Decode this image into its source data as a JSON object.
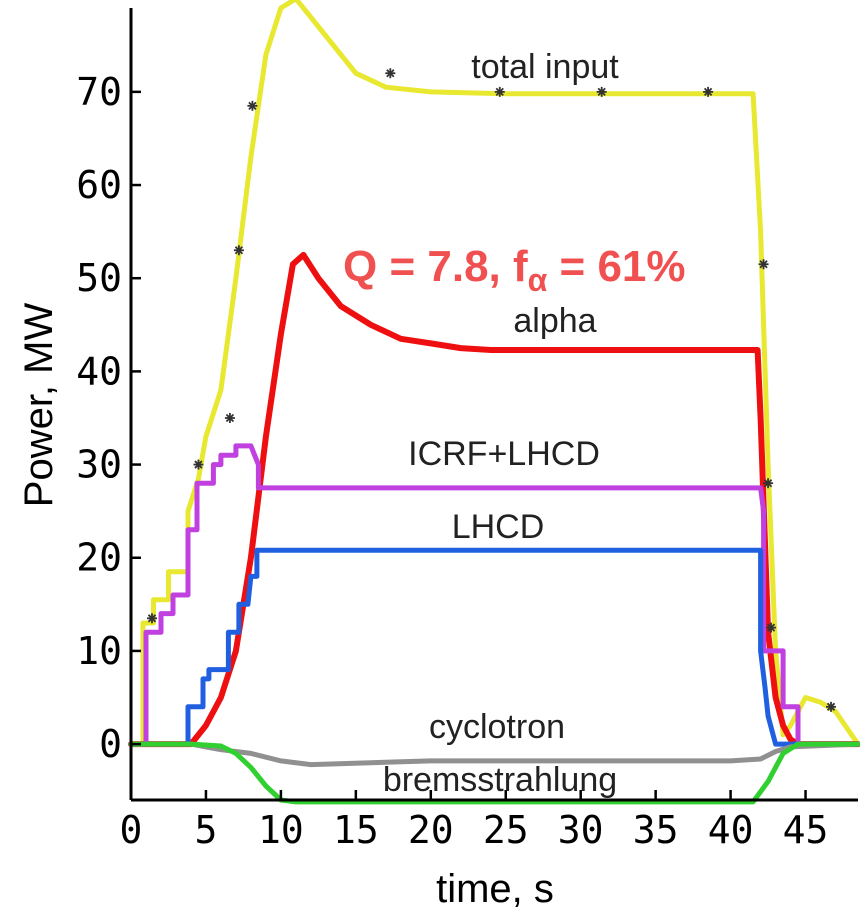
{
  "chart_data": {
    "type": "line",
    "title": "",
    "xlabel": "time, s",
    "ylabel": "Power, MW",
    "xlim": [
      0,
      48.5
    ],
    "ylim": [
      -6,
      79
    ],
    "xticks": [
      0,
      5,
      10,
      15,
      20,
      25,
      30,
      35,
      40,
      45
    ],
    "yticks": [
      0,
      10,
      20,
      30,
      40,
      50,
      60,
      70
    ],
    "grid": false,
    "annotation": {
      "prefix": "Q = 7.8, f",
      "sub": "α",
      "suffix": " = 61%",
      "color": "#f05050"
    },
    "series": [
      {
        "name": "total input",
        "color": "#e8e830",
        "x": [
          0,
          0.8,
          0.8,
          1.5,
          1.5,
          2.5,
          2.5,
          3.8,
          3.8,
          4.5,
          5,
          6,
          7,
          8,
          9,
          10,
          11,
          12,
          13,
          15,
          17,
          20,
          25,
          30,
          35,
          40,
          41.5,
          42,
          42.5,
          43,
          43.5,
          44,
          45,
          46,
          47,
          48.5
        ],
        "y": [
          0,
          0,
          13,
          13,
          15.5,
          15.5,
          18.5,
          18.5,
          25,
          28.5,
          33,
          38,
          50,
          63,
          74,
          79,
          80,
          78,
          76,
          72,
          70.5,
          70,
          69.8,
          69.8,
          69.8,
          69.8,
          69.8,
          55,
          30,
          10,
          1,
          2,
          5,
          4.5,
          3.5,
          0
        ]
      },
      {
        "name": "alpha",
        "color": "#ee1010",
        "x": [
          0,
          4,
          5,
          6,
          7,
          8,
          9,
          10,
          10.8,
          11.5,
          12.5,
          14,
          16,
          18,
          20,
          22,
          24,
          30,
          35,
          41.8,
          42,
          42.5,
          43,
          43.5,
          44,
          44.5,
          48.5
        ],
        "y": [
          0,
          0,
          2,
          5,
          10,
          20,
          33,
          44,
          51.5,
          52.5,
          50,
          47,
          45,
          43.5,
          43,
          42.5,
          42.3,
          42.3,
          42.3,
          42.3,
          35,
          12,
          5,
          2,
          0.5,
          0,
          0
        ]
      },
      {
        "name": "ICRF+LHCD",
        "color": "#c040e0",
        "x": [
          0,
          1,
          1,
          2,
          2,
          2.8,
          2.8,
          3.8,
          3.8,
          4.4,
          4.4,
          5.5,
          5.5,
          6,
          6,
          7,
          7,
          8,
          8.5,
          8.5,
          42,
          42.2,
          42.2,
          43.5,
          43.5,
          44.5,
          44.5,
          48.5
        ],
        "y": [
          0,
          0,
          12,
          12,
          14,
          14,
          16,
          16,
          23,
          23,
          28,
          28,
          30,
          30,
          31,
          31,
          32,
          32,
          30,
          27.5,
          27.5,
          25,
          10,
          10,
          4,
          4,
          0,
          0
        ]
      },
      {
        "name": "LHCD",
        "color": "#2060e0",
        "x": [
          0,
          3.8,
          3.8,
          4.8,
          4.8,
          5.2,
          5.2,
          6.5,
          6.5,
          7.2,
          7.2,
          7.8,
          8,
          8.4,
          8.4,
          42,
          42,
          42.3,
          42.5,
          43,
          44,
          48.5
        ],
        "y": [
          0,
          0,
          4,
          4,
          7,
          7,
          8,
          8,
          12,
          12,
          15,
          15,
          18,
          18,
          20.8,
          20.8,
          10,
          6,
          3,
          0,
          0,
          0
        ]
      },
      {
        "name": "cyclotron",
        "color": "#909090",
        "x": [
          0,
          4,
          5,
          6,
          8,
          10,
          12,
          16,
          20,
          30,
          40,
          42,
          43,
          44,
          48.5
        ],
        "y": [
          0,
          0,
          -0.3,
          -0.6,
          -1,
          -1.8,
          -2.2,
          -2,
          -1.8,
          -1.8,
          -1.8,
          -1.6,
          -0.8,
          -0.3,
          0
        ]
      },
      {
        "name": "bremsstrahlung",
        "color": "#30d030",
        "x": [
          0,
          4,
          6,
          7,
          8,
          9,
          10,
          11,
          20,
          30,
          41.5,
          42.5,
          43.5,
          44.5,
          48.5
        ],
        "y": [
          0,
          0,
          -0.2,
          -1,
          -2.5,
          -4.5,
          -6,
          -6.2,
          -6.2,
          -6.2,
          -6.2,
          -4,
          -1,
          0,
          0
        ]
      }
    ],
    "series_labels": [
      {
        "text": "total input"
      },
      {
        "text": "alpha"
      },
      {
        "text": "ICRF+LHCD"
      },
      {
        "text": "LHCD"
      },
      {
        "text": "cyclotron"
      },
      {
        "text": "bremsstrahlung"
      }
    ],
    "markers": {
      "color": "#333333",
      "x": [
        1.4,
        4.5,
        6.6,
        7.2,
        8.1,
        17.3,
        24.6,
        31.4,
        38.5,
        42.2,
        42.5,
        42.7,
        46.7
      ],
      "y": [
        13.5,
        30,
        35,
        53,
        68.5,
        72,
        70,
        70,
        70,
        51.5,
        28,
        12.5,
        4
      ]
    }
  }
}
